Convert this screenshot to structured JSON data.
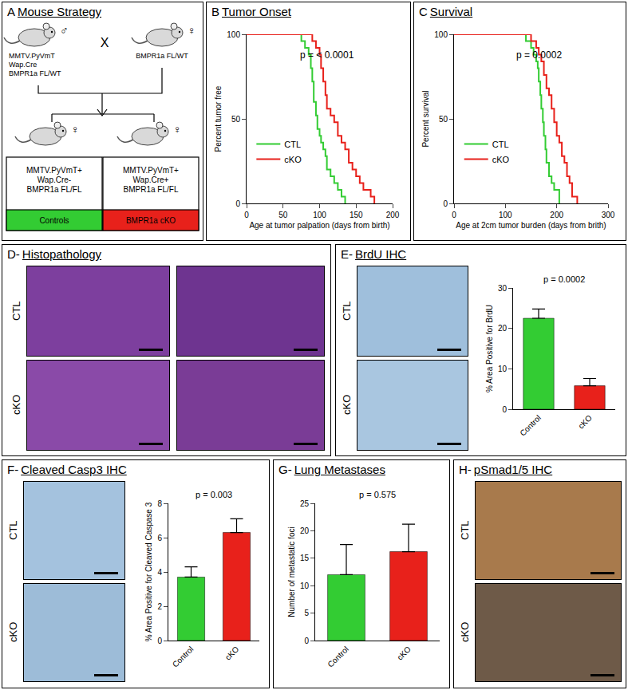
{
  "panels": {
    "A": {
      "label": "A",
      "title": "Mouse Strategy",
      "male": {
        "sex": "♂",
        "lines": [
          "MMTV.PyVmT",
          "Wap.Cre",
          "BMPR1a FL/WT"
        ]
      },
      "cross": "X",
      "female": {
        "sex": "♀",
        "lines": [
          "BMPR1a FL/WT"
        ]
      },
      "offspring": [
        {
          "sex": "♀",
          "lines": [
            "MMTV.PyVmT+",
            "Wap.Cre-",
            "BMPR1a FL/FL"
          ],
          "group": "Controls",
          "color": "#33cc33"
        },
        {
          "sex": "♀",
          "lines": [
            "MMTV.PyVmT+",
            "Wap.Cre+",
            "BMPR1a FL/FL"
          ],
          "group": "BMPR1a cKO",
          "color": "#e8211b"
        }
      ]
    },
    "D": {
      "label": "D-",
      "title": "Histopathology",
      "rows": [
        "CTL",
        "cKO"
      ]
    },
    "E": {
      "label": "E-",
      "title": "BrdU IHC",
      "rows": [
        "CTL",
        "cKO"
      ]
    },
    "F": {
      "label": "F-",
      "title": "Cleaved Casp3 IHC",
      "rows": [
        "CTL",
        "cKO"
      ]
    },
    "H": {
      "label": "H-",
      "title": "pSmad1/5 IHC",
      "rows": [
        "CTL",
        "cKO"
      ]
    }
  },
  "chart_data": [
    {
      "type": "line",
      "label": "B",
      "title": "Tumor Onset",
      "annotation": "p = < 0.0001",
      "x_label": "Age at tumor palpation (days from birth)",
      "y_label": "Percent tumor free",
      "xlim": [
        0,
        200
      ],
      "xticks": [
        0,
        50,
        100,
        150,
        200
      ],
      "ylim": [
        0,
        100
      ],
      "yticks": [
        0,
        50,
        100
      ],
      "legend": "left",
      "line_style": "step",
      "series": [
        {
          "name": "CTL",
          "color": "#33cc33",
          "x": [
            0,
            70,
            75,
            80,
            85,
            88,
            90,
            92,
            95,
            97,
            100,
            102,
            105,
            108,
            110,
            115,
            120,
            125,
            130,
            135
          ],
          "values": [
            100,
            100,
            96,
            92,
            88,
            80,
            72,
            60,
            52,
            44,
            40,
            36,
            32,
            28,
            20,
            16,
            12,
            8,
            4,
            0
          ]
        },
        {
          "name": "cKO",
          "color": "#e8211b",
          "x": [
            0,
            85,
            90,
            95,
            100,
            102,
            105,
            108,
            110,
            115,
            120,
            125,
            130,
            135,
            140,
            145,
            150,
            155,
            160,
            170,
            175
          ],
          "values": [
            100,
            100,
            96,
            92,
            88,
            80,
            72,
            64,
            56,
            52,
            48,
            40,
            36,
            32,
            24,
            20,
            16,
            12,
            8,
            4,
            0
          ]
        }
      ]
    },
    {
      "type": "line",
      "label": "C",
      "title": "Survival",
      "annotation": "p = 0.0002",
      "x_label": "Age at 2cm tumor burden (days from brith)",
      "y_label": "Percent survival",
      "xlim": [
        0,
        300
      ],
      "xticks": [
        0,
        100,
        200,
        300
      ],
      "ylim": [
        0,
        100
      ],
      "yticks": [
        0,
        50,
        100
      ],
      "legend": "left",
      "line_style": "step",
      "series": [
        {
          "name": "CTL",
          "color": "#33cc33",
          "x": [
            0,
            125,
            140,
            150,
            155,
            160,
            163,
            165,
            168,
            170,
            173,
            175,
            178,
            180,
            185,
            190,
            195,
            205
          ],
          "values": [
            100,
            100,
            96,
            92,
            88,
            84,
            80,
            72,
            64,
            56,
            48,
            40,
            32,
            24,
            16,
            12,
            8,
            0
          ]
        },
        {
          "name": "cKO",
          "color": "#e8211b",
          "x": [
            0,
            140,
            150,
            160,
            165,
            170,
            175,
            180,
            185,
            190,
            195,
            200,
            205,
            210,
            215,
            220,
            225,
            230,
            240
          ],
          "values": [
            100,
            100,
            96,
            92,
            88,
            84,
            76,
            68,
            64,
            56,
            48,
            40,
            36,
            28,
            24,
            16,
            12,
            4,
            0
          ]
        }
      ]
    },
    {
      "type": "bar",
      "annotation": "p = 0.0002",
      "y_label": "% Area Positive for BrdU",
      "categories": [
        "Control",
        "cKO"
      ],
      "values": [
        22.5,
        5.8
      ],
      "errors": [
        2.3,
        1.8
      ],
      "colors": [
        "#33cc33",
        "#e8211b"
      ],
      "ylim": [
        0,
        30
      ],
      "yticks": [
        0,
        10,
        20,
        30
      ]
    },
    {
      "type": "bar",
      "annotation": "p = 0.003",
      "y_label": "% Area Positive for Cleaved Caspase 3",
      "categories": [
        "Control",
        "cKO"
      ],
      "values": [
        3.7,
        6.3
      ],
      "errors": [
        0.6,
        0.8
      ],
      "colors": [
        "#33cc33",
        "#e8211b"
      ],
      "ylim": [
        0,
        8
      ],
      "yticks": [
        0,
        2,
        4,
        6,
        8
      ]
    },
    {
      "type": "bar",
      "label": "G-",
      "title": "Lung Metastases",
      "annotation": "p = 0.575",
      "y_label": "Number of metastatic foci",
      "categories": [
        "Control",
        "cKO"
      ],
      "values": [
        12,
        16.2
      ],
      "errors": [
        5.5,
        5
      ],
      "colors": [
        "#33cc33",
        "#e8211b"
      ],
      "ylim": [
        0,
        25
      ],
      "yticks": [
        0,
        5,
        10,
        15,
        20,
        25
      ]
    }
  ]
}
